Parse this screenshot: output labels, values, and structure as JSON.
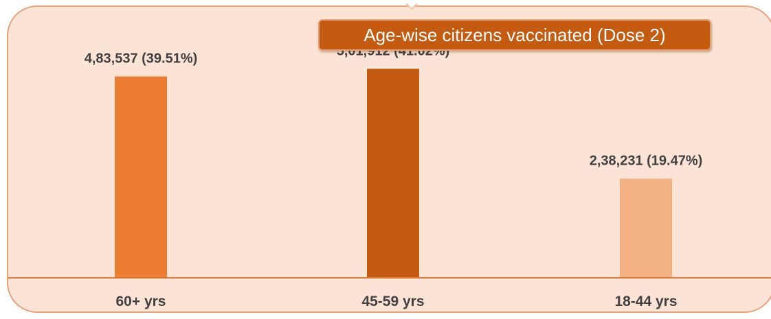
{
  "chart_data": {
    "type": "bar",
    "title": "Age-wise citizens vaccinated (Dose 2)",
    "categories": [
      "60+ yrs",
      "45-59 yrs",
      "18-44 yrs"
    ],
    "values": [
      483537,
      501912,
      238231
    ],
    "data_labels": [
      "4,83,537 (39.51%)",
      "5,01,912 (41.02%)",
      "2,38,231 (19.47%)"
    ],
    "colors": [
      "#ed7d31",
      "#c55a11",
      "#f4b183"
    ],
    "ylim": [
      0,
      560000
    ],
    "grid": false,
    "legend": "none",
    "background": "#fbe4d5",
    "axis_color": "#e07b39"
  }
}
